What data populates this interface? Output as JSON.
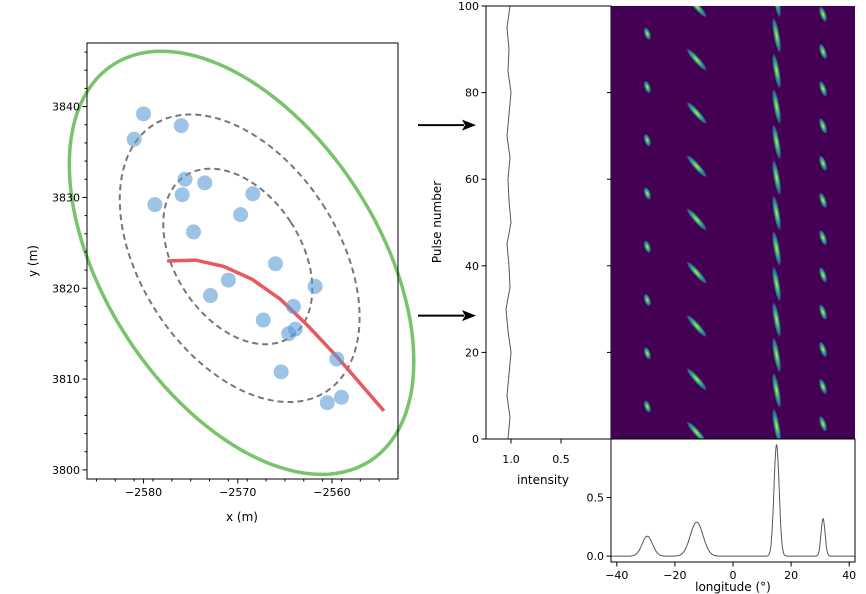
{
  "chart_data": [
    {
      "id": "array-layout",
      "type": "scatter",
      "title": "",
      "xlabel": "x (m)",
      "ylabel": "y (m)",
      "xlim": [
        -2586,
        -2553
      ],
      "ylim": [
        3799,
        3847
      ],
      "xticks": [
        -2580,
        -2570,
        -2560
      ],
      "yticks": [
        3800,
        3810,
        3820,
        3830,
        3840
      ],
      "grid": false,
      "colors": {
        "points": "#5b9bd5",
        "dashed": "#777777",
        "red": "#e8585d",
        "green": "#78c46a"
      },
      "points": [
        [
          -2580.0,
          3839.2
        ],
        [
          -2581.0,
          3836.4
        ],
        [
          -2576.0,
          3837.9
        ],
        [
          -2578.8,
          3829.2
        ],
        [
          -2575.6,
          3832.0
        ],
        [
          -2575.9,
          3830.3
        ],
        [
          -2573.5,
          3831.6
        ],
        [
          -2568.4,
          3830.4
        ],
        [
          -2569.7,
          3828.1
        ],
        [
          -2574.7,
          3826.2
        ],
        [
          -2566.0,
          3822.7
        ],
        [
          -2561.8,
          3820.2
        ],
        [
          -2571.0,
          3820.9
        ],
        [
          -2572.9,
          3819.2
        ],
        [
          -2564.1,
          3818.0
        ],
        [
          -2567.3,
          3816.5
        ],
        [
          -2563.9,
          3815.5
        ],
        [
          -2564.6,
          3815.0
        ],
        [
          -2559.5,
          3812.2
        ],
        [
          -2565.4,
          3810.8
        ],
        [
          -2560.5,
          3807.4
        ],
        [
          -2559.0,
          3808.0
        ]
      ],
      "dashed_ellipses": [
        {
          "cx": -2569.8,
          "cy": 3823.3,
          "rx": 10.5,
          "ry": 17.5
        },
        {
          "cx": -2570.0,
          "cy": 3823.5,
          "rx": 6.7,
          "ry": 10.6
        }
      ],
      "green_ellipse": {
        "cx": -2569.6,
        "cy": 3822.8,
        "rx": 14.5,
        "ry": 26.0
      },
      "red_curve": [
        [
          -2577.5,
          3823.0
        ],
        [
          -2574.5,
          3823.1
        ],
        [
          -2571.5,
          3822.4
        ],
        [
          -2568.5,
          3821.0
        ],
        [
          -2565.5,
          3818.8
        ],
        [
          -2562.5,
          3815.8
        ],
        [
          -2559.5,
          3812.5
        ],
        [
          -2557.0,
          3809.5
        ],
        [
          -2554.5,
          3806.5
        ]
      ]
    },
    {
      "id": "pulse-intensity",
      "type": "line",
      "xlabel": "intensity",
      "ylabel": "Pulse number",
      "xlim": [
        1.25,
        0.0
      ],
      "ylim": [
        0,
        100
      ],
      "xticks": [
        1.0,
        0.5
      ],
      "yticks": [
        0,
        20,
        40,
        60,
        80,
        100
      ],
      "x": [
        1.03,
        1.01,
        1.04,
        1.02,
        1.0,
        1.03,
        1.05,
        1.01,
        1.02,
        1.04,
        1.0,
        1.02,
        1.03,
        1.01,
        1.04,
        1.02,
        1.0,
        1.03,
        1.02,
        1.04,
        1.01
      ],
      "y": [
        0,
        5,
        10,
        15,
        20,
        25,
        30,
        35,
        40,
        45,
        50,
        55,
        60,
        65,
        70,
        75,
        80,
        85,
        90,
        95,
        100
      ],
      "arrows_at_pulse": [
        72.5,
        28.5
      ]
    },
    {
      "id": "pulse-stack",
      "type": "heatmap",
      "xlim": [
        -42,
        42
      ],
      "ylim": [
        0,
        100
      ],
      "background": "#440154",
      "components": [
        {
          "lon": -29.5,
          "tilt": 0.6,
          "len": 8,
          "period": 12.3,
          "offset": 7.5
        },
        {
          "lon": -12.5,
          "tilt": 1.5,
          "len": 18,
          "period": 12.3,
          "offset": 1.5
        },
        {
          "lon": 15.0,
          "tilt": 0.3,
          "len": 22,
          "period": 8.2,
          "offset": 3.0
        },
        {
          "lon": 31.0,
          "tilt": 0.6,
          "len": 10,
          "period": 8.6,
          "offset": 3.5
        }
      ]
    },
    {
      "id": "average-profile",
      "type": "line",
      "xlabel": "longitude (°)",
      "ylabel": "",
      "xlim": [
        -42,
        42
      ],
      "ylim": [
        -0.05,
        1.0
      ],
      "xticks": [
        -40,
        -20,
        0,
        20,
        40
      ],
      "yticks": [
        0.0,
        0.5
      ],
      "peaks": [
        {
          "center": -29.5,
          "amp": 0.17,
          "width": 1.8
        },
        {
          "center": -12.5,
          "amp": 0.29,
          "width": 2.2
        },
        {
          "center": 15.0,
          "amp": 0.95,
          "width": 0.9
        },
        {
          "center": 31.0,
          "amp": 0.32,
          "width": 0.7
        }
      ]
    }
  ]
}
